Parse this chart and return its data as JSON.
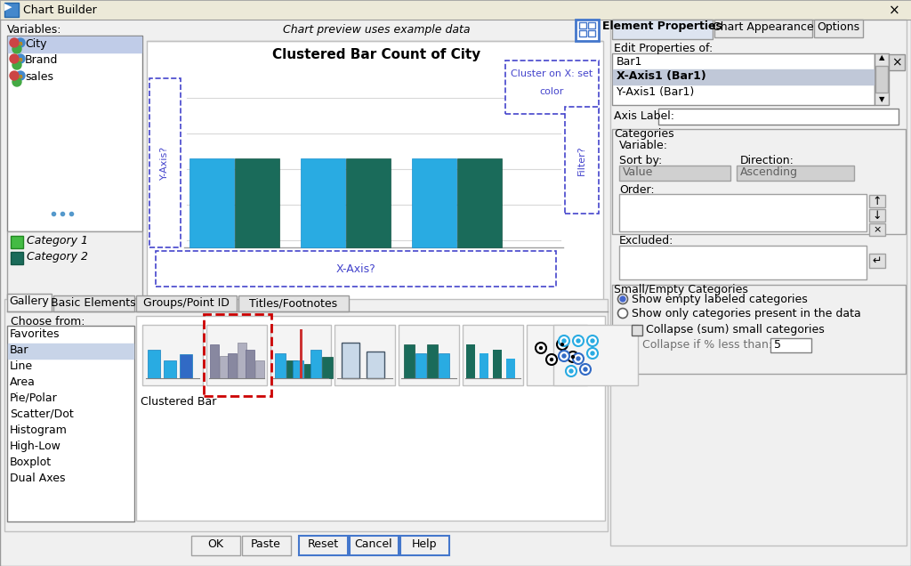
{
  "title": "Chart Builder",
  "bar_color1": "#29abe2",
  "bar_color2": "#1a6b5a",
  "dashed_border": "#4444cc",
  "red_dashed": "#cc0000",
  "highlight_blue": "#316ac5",
  "preview_title": "Clustered Bar Count of City",
  "chart_preview_text": "Chart preview uses example data",
  "variables_label": "Variables:",
  "var1": "City",
  "var2": "Brand",
  "var3": "sales",
  "cat1": "Category 1",
  "cat2": "Category 2",
  "xaxis_label": "X-Axis?",
  "yaxis_label": "Y-Axis?",
  "filter_label": "Filter?",
  "tab_gallery": "Gallery",
  "tab_basic": "Basic Elements",
  "tab_groups": "Groups/Point ID",
  "tab_titles": "Titles/Footnotes",
  "choose_from": "Choose from:",
  "menu_items": [
    "Favorites",
    "Bar",
    "Line",
    "Area",
    "Pie/Polar",
    "Scatter/Dot",
    "Histogram",
    "High-Low",
    "Boxplot",
    "Dual Axes"
  ],
  "selected_menu": "Bar",
  "clustered_bar_label": "Clustered Bar",
  "right_tab1": "Element Properties",
  "right_tab2": "Chart Appearance",
  "right_tab3": "Options",
  "edit_props": "Edit Properties of:",
  "prop_items": [
    "Bar1",
    "X-Axis1 (Bar1)",
    "Y-Axis1 (Bar1)"
  ],
  "axis_label_text": "Axis Label:",
  "categories_text": "Categories",
  "variable_text": "Variable:",
  "sort_by_text": "Sort by:",
  "direction_text": "Direction:",
  "value_text": "Value",
  "ascending_text": "Ascending",
  "order_text": "Order:",
  "excluded_text": "Excluded:",
  "small_empty_text": "Small/Empty Categories",
  "show_empty_text": "Show empty labeled categories",
  "show_only_text": "Show only categories present in the data",
  "collapse_text": "Collapse (sum) small categories",
  "collapse_if_text": "Collapse if % less than:",
  "collapse_val": "5",
  "btn_ok": "OK",
  "btn_paste": "Paste",
  "btn_reset": "Reset",
  "btn_cancel": "Cancel",
  "btn_help": "Help"
}
